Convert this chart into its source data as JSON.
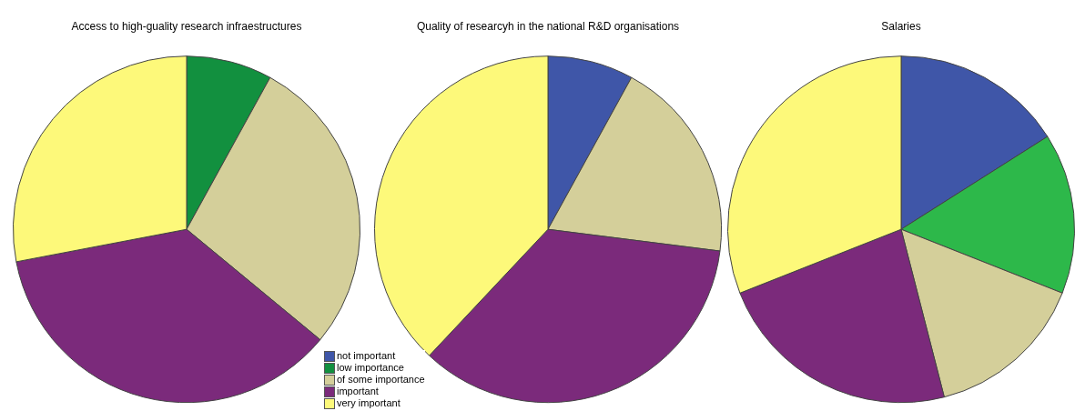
{
  "chart_data": [
    {
      "type": "pie",
      "title": "Access to high-guality research infraestructures",
      "categories": [
        "not important",
        "low importance",
        "of some importance",
        "important",
        "very important"
      ],
      "values": [
        0,
        8,
        28,
        36,
        28
      ],
      "colors": [
        "#3f56a8",
        "#12903f",
        "#d4cf9a",
        "#7b2a7b",
        "#fdf97a"
      ],
      "legend": "bottom right"
    },
    {
      "type": "pie",
      "title": "Quality of researcyh in the national R&D organisations",
      "categories": [
        null,
        null,
        null,
        null,
        null
      ],
      "values": [
        8,
        0,
        19,
        35,
        38
      ],
      "colors": [
        "#3f56a8",
        "#2db84a",
        "#d4cf9a",
        "#7b2a7b",
        "#fdf97a"
      ]
    },
    {
      "type": "pie",
      "title": "Salaries",
      "categories": [
        null,
        null,
        null,
        null,
        null
      ],
      "values": [
        16,
        15,
        15,
        23,
        31
      ],
      "colors": [
        "#3f56a8",
        "#2db84a",
        "#d4cf9a",
        "#7b2a7b",
        "#fdf97a"
      ]
    }
  ]
}
